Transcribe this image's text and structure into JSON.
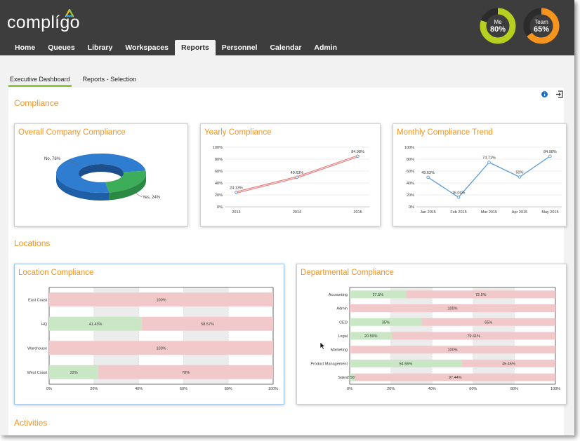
{
  "app": {
    "logo_text": "complígo"
  },
  "nav": {
    "items": [
      "Home",
      "Queues",
      "Library",
      "Workspaces",
      "Reports",
      "Personnel",
      "Calendar",
      "Admin"
    ],
    "active": "Reports"
  },
  "rings": [
    {
      "label": "Me",
      "value": "80%",
      "fraction": 0.8,
      "color": "#b7cf1f"
    },
    {
      "label": "Team",
      "value": "65%",
      "fraction": 0.65,
      "color": "#f7941d"
    }
  ],
  "subtabs": [
    "Executive Dashboard",
    "Reports - Selection"
  ],
  "sections": {
    "compliance": "Compliance",
    "locations": "Locations",
    "activities": "Activities"
  },
  "colors": {
    "accent": "#f7941d",
    "green_bar": "#c9e6c5",
    "red_bar": "#f2c9cb",
    "pie_blue": "#2f7dd0",
    "pie_green": "#3cae5a",
    "line_blue": "#5b9bd5"
  },
  "chart_data": [
    {
      "type": "pie",
      "title": "Overall Company Compliance",
      "slices": [
        {
          "label": "No, 76%",
          "value": 76
        },
        {
          "label": "Yes, 24%",
          "value": 24
        }
      ]
    },
    {
      "type": "line",
      "title": "Yearly Compliance",
      "categories": [
        "2013",
        "2014",
        "2015"
      ],
      "values": [
        24.13,
        49.63,
        84.98
      ],
      "labels": [
        "24.13%",
        "49.63%",
        "84.98%"
      ],
      "ylim": [
        0,
        100
      ],
      "yticks": [
        "0%",
        "20%",
        "40%",
        "60%",
        "80%",
        "100%"
      ]
    },
    {
      "type": "line",
      "title": "Monthly Compliance Trend",
      "categories": [
        "Jan 2015",
        "Feb 2015",
        "Mar 2015",
        "Apr 2015",
        "May 2015"
      ],
      "values": [
        49.63,
        16.04,
        74.71,
        50,
        84.98
      ],
      "labels": [
        "49.63%",
        "16.04%",
        "74.71%",
        "50%",
        "84.98%"
      ],
      "ylim": [
        0,
        100
      ],
      "yticks": [
        "0%",
        "20%",
        "40%",
        "60%",
        "80%",
        "100%"
      ]
    },
    {
      "type": "bar",
      "title": "Location Compliance",
      "categories": [
        "East Coast",
        "HQ",
        "Warehouse",
        "West Coast"
      ],
      "series": [
        {
          "values": [
            0,
            41.43,
            0,
            22
          ],
          "labels": [
            "",
            "41.43%",
            "",
            "22%"
          ]
        },
        {
          "values": [
            100,
            58.57,
            100,
            78
          ],
          "labels": [
            "100%",
            "58.57%",
            "100%",
            "78%"
          ]
        }
      ],
      "xlim": [
        0,
        100
      ],
      "xticks": [
        "0%",
        "20%",
        "40%",
        "60%",
        "80%",
        "100%"
      ]
    },
    {
      "type": "bar",
      "title": "Departmental Compliance",
      "categories": [
        "Accounting",
        "Admin",
        "CEO",
        "Legal",
        "Marketing",
        "Product Management",
        "Sales"
      ],
      "series": [
        {
          "values": [
            27.5,
            0,
            35,
            20.59,
            0,
            54.55,
            2.56
          ],
          "labels": [
            "27.5%",
            "",
            "35%",
            "20.59%",
            "",
            "54.55%",
            "2.56%"
          ]
        },
        {
          "values": [
            72.5,
            100,
            65,
            79.41,
            100,
            45.45,
            97.44
          ],
          "labels": [
            "72.5%",
            "100%",
            "65%",
            "79.41%",
            "100%",
            "45.45%",
            "97.44%"
          ]
        }
      ],
      "xlim": [
        0,
        100
      ],
      "xticks": [
        "0%",
        "20%",
        "40%",
        "60%",
        "80%",
        "100%"
      ]
    }
  ]
}
